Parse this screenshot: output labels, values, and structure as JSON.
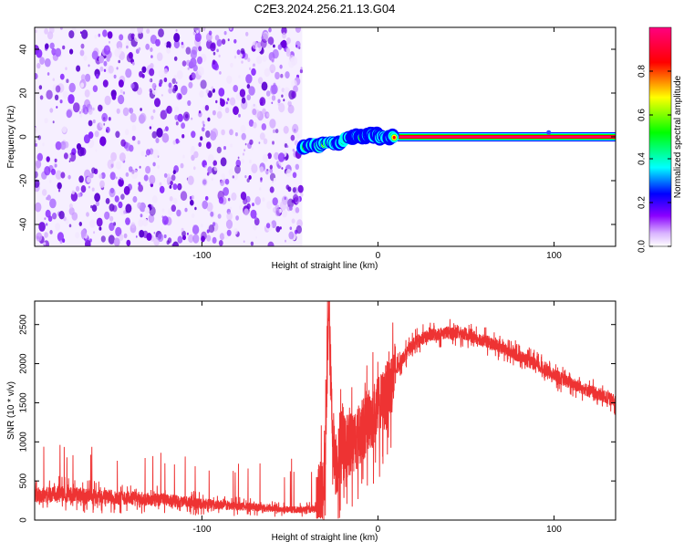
{
  "title": "C2E3.2024.256.21.13.G04",
  "colors": {
    "snr_line": "#ee3333",
    "spectro_background": "#ffffff",
    "spectro_speckle": "#6a00e0",
    "colormap": [
      "#ffffff",
      "#e6ccff",
      "#8a00ff",
      "#0000ff",
      "#00ffff",
      "#00ff00",
      "#ffff00",
      "#ff0000",
      "#ff0080"
    ]
  },
  "chart_data": [
    {
      "type": "heatmap",
      "name": "spectrogram",
      "xlabel": "Height of straight line (km)",
      "ylabel": "Frequency (Hz)",
      "xlim": [
        -195,
        135
      ],
      "ylim": [
        -50,
        50
      ],
      "xticks": [
        -100,
        0,
        100
      ],
      "yticks": [
        -40,
        -20,
        0,
        20,
        40
      ],
      "grid": false,
      "colorbar": {
        "label": "Normalized spectral amplitude",
        "range": [
          0,
          1
        ],
        "ticks": [
          0.0,
          0.2,
          0.4,
          0.6,
          0.8
        ]
      },
      "noise_region_x": [
        -195,
        -43
      ],
      "signal_track": {
        "x": [
          -43,
          -38,
          -33,
          -28,
          -23,
          -18,
          -13,
          -8,
          -3,
          2,
          7,
          10,
          135
        ],
        "y": [
          -5,
          -4,
          -4,
          -2,
          -3,
          -1,
          0,
          0,
          1,
          0,
          0,
          0,
          0
        ],
        "amplitude_note_x": 10
      }
    },
    {
      "type": "line",
      "name": "snr",
      "xlabel": "Height of straight line (km)",
      "ylabel": "SNR (10 * v/v)",
      "xlim": [
        -195,
        135
      ],
      "ylim": [
        0,
        2800
      ],
      "xticks": [
        -100,
        0,
        100
      ],
      "yticks": [
        0,
        500,
        1000,
        1500,
        2000,
        2500
      ],
      "grid": false,
      "series": [
        {
          "x": [
            -195,
            -180,
            -160,
            -140,
            -120,
            -100,
            -80,
            -60,
            -45,
            -35,
            -30,
            -28,
            -26,
            -24,
            -20,
            -15,
            -10,
            -5,
            0,
            5,
            10,
            15,
            20,
            25,
            30,
            40,
            50,
            60,
            70,
            80,
            90,
            100,
            110,
            120,
            135
          ],
          "y": [
            320,
            330,
            300,
            280,
            250,
            210,
            180,
            150,
            130,
            140,
            600,
            2750,
            1200,
            700,
            900,
            1000,
            1100,
            1300,
            1400,
            1600,
            1900,
            2100,
            2250,
            2320,
            2360,
            2400,
            2380,
            2300,
            2200,
            2100,
            1980,
            1850,
            1750,
            1650,
            1520
          ]
        }
      ]
    }
  ]
}
